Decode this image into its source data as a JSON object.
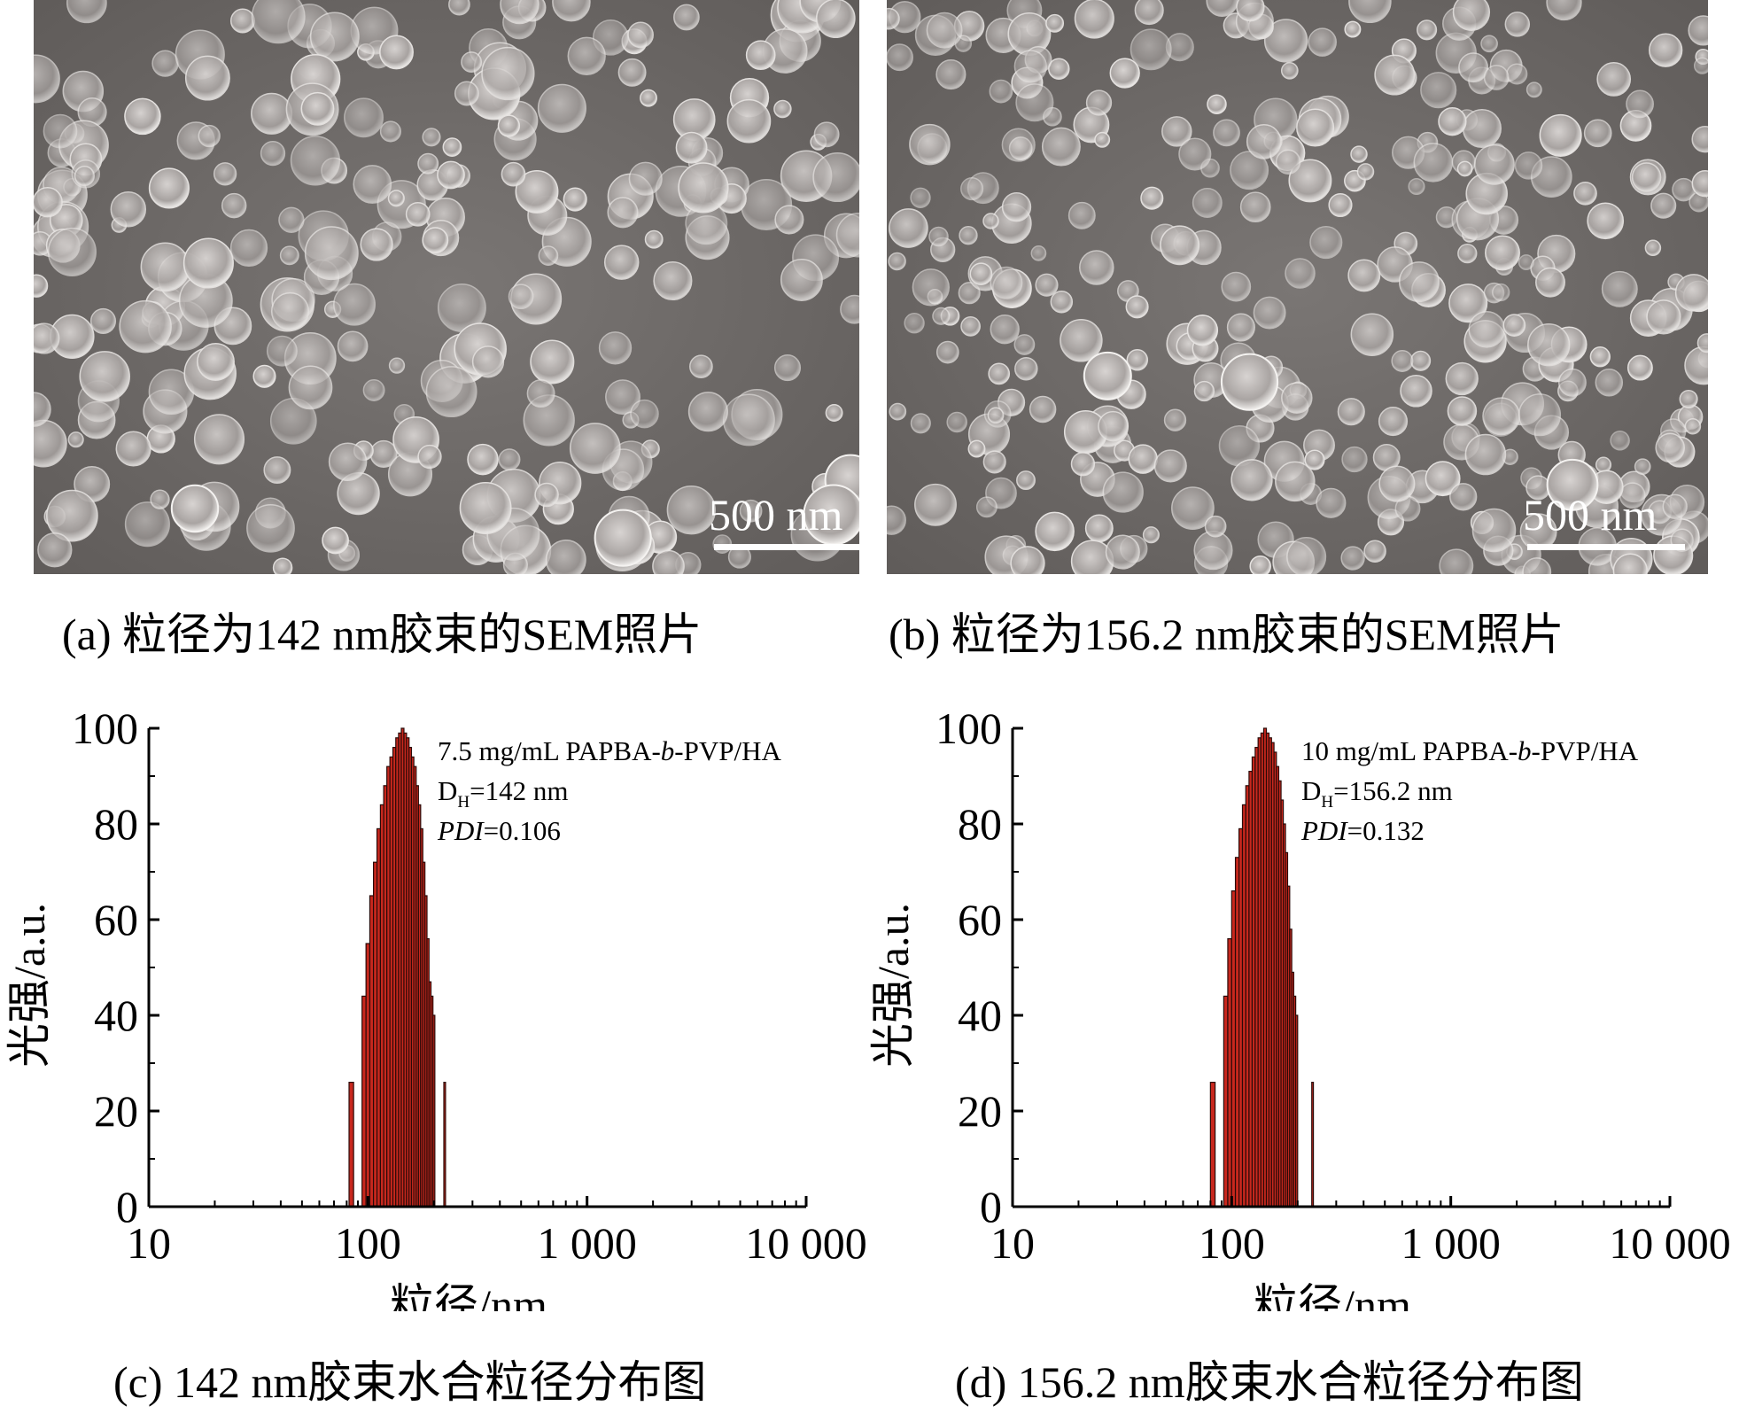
{
  "panels": [
    {
      "id": "a",
      "caption": "(a) 粒径为142 nm胶束的SEM照片",
      "scale_bar": "500 nm"
    },
    {
      "id": "b",
      "caption": "(b) 粒径为156.2 nm胶束的SEM照片",
      "scale_bar": "500 nm"
    }
  ],
  "chart_data": [
    {
      "type": "bar",
      "caption": "(c) 142 nm胶束水合粒径分布图",
      "xlabel": "粒径/nm",
      "ylabel": "光强/a.u.",
      "xscale": "log",
      "xlim": [
        10,
        10000
      ],
      "ylim": [
        0,
        100
      ],
      "xticks": [
        10,
        100,
        1000,
        10000
      ],
      "xtick_labels": [
        "10",
        "100",
        "1 000",
        "10 000"
      ],
      "yticks": [
        0,
        20,
        40,
        60,
        80,
        100
      ],
      "yticks_labels": [
        "0",
        "20",
        "40",
        "60",
        "80",
        "100"
      ],
      "annotation": {
        "line1_pre": "7.5 mg/mL PAPBA-",
        "line1_italic": "b",
        "line1_post": "-PVP/HA",
        "dh_main": "D",
        "dh_sub": "H",
        "dh_value": "=142 nm",
        "pdi_label": "PDI",
        "pdi_value": "=0.106"
      },
      "x": [
        82,
        86,
        90,
        94,
        98,
        102,
        106,
        110,
        114,
        118,
        122,
        126,
        130,
        134,
        138,
        142,
        146,
        150,
        154,
        158,
        162,
        166,
        170,
        174,
        178,
        182,
        186,
        190,
        194,
        198,
        202,
        206,
        210,
        214,
        218,
        222
      ],
      "values": [
        26,
        0,
        0,
        44,
        55,
        65,
        72,
        79,
        84,
        88,
        92,
        94,
        96,
        98,
        99,
        100,
        99,
        98,
        96,
        94,
        92,
        88,
        84,
        79,
        72,
        65,
        56,
        47,
        44,
        40,
        0,
        0,
        0,
        0,
        0,
        26
      ],
      "bar_color": "#c8281e"
    },
    {
      "type": "bar",
      "caption": "(d) 156.2 nm胶束水合粒径分布图",
      "xlabel": "粒径/nm",
      "ylabel": "光强/a.u.",
      "xscale": "log",
      "xlim": [
        10,
        10000
      ],
      "ylim": [
        0,
        100
      ],
      "xticks": [
        10,
        100,
        1000,
        10000
      ],
      "xtick_labels": [
        "10",
        "100",
        "1 000",
        "10 000"
      ],
      "yticks": [
        0,
        20,
        40,
        60,
        80,
        100
      ],
      "yticks_labels": [
        "0",
        "20",
        "40",
        "60",
        "80",
        "100"
      ],
      "annotation": {
        "line1_pre": "10 mg/mL PAPBA-",
        "line1_italic": "b",
        "line1_post": "-PVP/HA",
        "dh_main": "D",
        "dh_sub": "H",
        "dh_value": "=156.2 nm",
        "pdi_label": "PDI",
        "pdi_value": "=0.132"
      },
      "x": [
        80,
        84,
        88,
        92,
        96,
        100,
        104,
        108,
        112,
        116,
        120,
        124,
        128,
        132,
        136,
        140,
        144,
        148,
        152,
        156,
        160,
        164,
        168,
        172,
        176,
        180,
        184,
        188,
        192,
        196,
        200,
        204,
        208,
        212,
        216,
        220,
        224,
        228,
        232,
        236
      ],
      "values": [
        26,
        0,
        0,
        44,
        56,
        66,
        73,
        79,
        84,
        88,
        91,
        94,
        96,
        98,
        99,
        100,
        99,
        98,
        97,
        95,
        92,
        89,
        85,
        80,
        74,
        67,
        58,
        49,
        44,
        40,
        0,
        0,
        0,
        0,
        0,
        0,
        0,
        0,
        26,
        0
      ],
      "bar_color": "#c8281e"
    }
  ]
}
